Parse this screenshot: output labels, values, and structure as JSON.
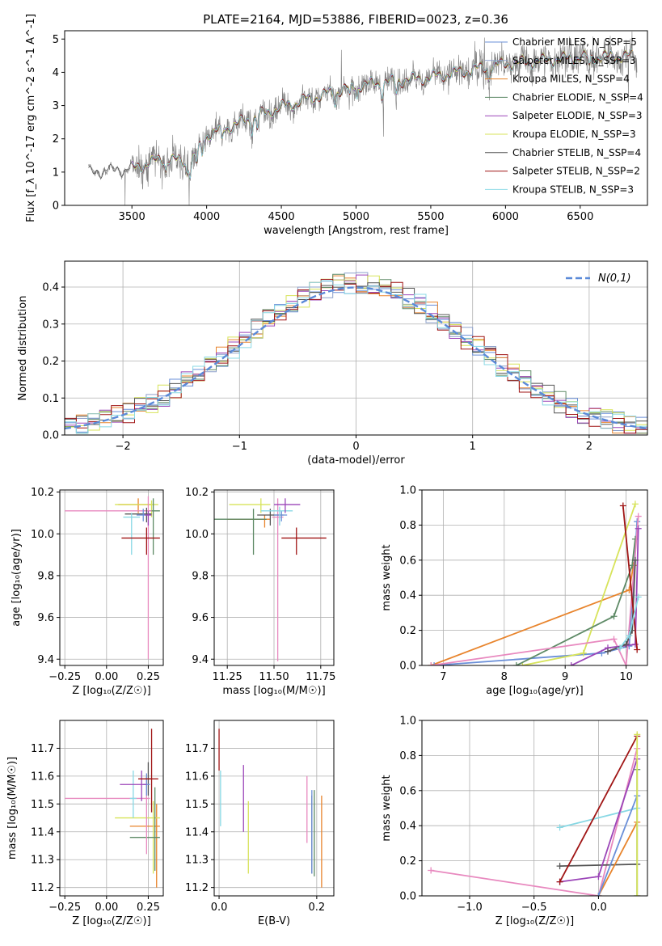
{
  "figure": {
    "title": "PLATE=2164, MJD=53886, FIBERID=0023, z=0.36"
  },
  "chart_data": [
    {
      "id": "spectrum",
      "type": "line",
      "xlabel": "wavelength [Angstrom, rest frame]",
      "ylabel": "Flux [f_λ 10^-17 erg cm^-2 s^-1 A^-1]",
      "xlim": [
        3050,
        6950
      ],
      "ylim": [
        0,
        5.25
      ],
      "xticks": [
        3500,
        4000,
        4500,
        5000,
        5500,
        6000,
        6500
      ],
      "yticks": [
        0,
        1,
        2,
        3,
        4,
        5
      ],
      "grid": false,
      "legend_position": "top-right",
      "observed_spectrum": {
        "color": "#808080",
        "x_range": [
          3210,
          6880
        ],
        "trend_x": [
          3210,
          3500,
          3700,
          3900,
          4000,
          4500,
          5000,
          5500,
          6000,
          6500,
          6880
        ],
        "trend_y": [
          1.0,
          1.1,
          1.4,
          1.3,
          2.1,
          2.95,
          3.6,
          3.85,
          4.25,
          4.45,
          4.5
        ]
      },
      "series": [
        {
          "name": "Chabrier MILES, N_SSP=5",
          "color": "#6a8fd8"
        },
        {
          "name": "Salpeter MILES, N_SSP=3",
          "color": "#8da0cb"
        },
        {
          "name": "Kroupa MILES, N_SSP=4",
          "color": "#e8842c"
        },
        {
          "name": "Chabrier ELODIE, N_SSP=4",
          "color": "#5e8a66"
        },
        {
          "name": "Salpeter ELODIE, N_SSP=3",
          "color": "#9b45b8"
        },
        {
          "name": "Kroupa ELODIE, N_SSP=3",
          "color": "#d7e35a"
        },
        {
          "name": "Chabrier STELIB, N_SSP=4",
          "color": "#555555"
        },
        {
          "name": "Salpeter STELIB, N_SSP=2",
          "color": "#a01515"
        },
        {
          "name": "Kroupa STELIB, N_SSP=3",
          "color": "#88d8e4"
        }
      ]
    },
    {
      "id": "residuals",
      "type": "histogram",
      "xlabel": "(data-model)/error",
      "ylabel": "Normed distribution",
      "xlim": [
        -2.5,
        2.5
      ],
      "ylim": [
        0,
        0.47
      ],
      "xticks": [
        -2,
        -1,
        0,
        1,
        2
      ],
      "yticks": [
        0.0,
        0.1,
        0.2,
        0.3,
        0.4
      ],
      "grid": true,
      "legend_position": "top-right",
      "normal_curve": {
        "name": "N(0,1)",
        "color": "#5b8ad8",
        "style": "dashed"
      },
      "bin_width": 0.1,
      "bins": [
        -2.5,
        2.5
      ]
    },
    {
      "id": "age_vs_Z",
      "type": "errorbar",
      "xlabel": "Z [log10(Z/Z_sun)]",
      "ylabel": "age [log10(age/yr)]",
      "xlim": [
        -0.28,
        0.34
      ],
      "ylim": [
        9.37,
        10.21
      ],
      "xticks": [
        -0.25,
        0.0,
        0.25
      ],
      "yticks": [
        9.4,
        9.6,
        9.8,
        10.0,
        10.2
      ],
      "grid": true,
      "points": [
        {
          "x": 0.19,
          "xerr": [
            0.12,
            0.08
          ],
          "y": 10.14,
          "yerr": [
            0.04,
            0.03
          ],
          "color": "#e8842c"
        },
        {
          "x": 0.27,
          "xerr": [
            0.22,
            0.04
          ],
          "y": 10.14,
          "yerr": [
            0.06,
            0.02
          ],
          "color": "#d7e35a"
        },
        {
          "x": 0.28,
          "xerr": [
            0.06,
            0.04
          ],
          "y": 10.11,
          "yerr": [
            0.21,
            0.06
          ],
          "color": "#5e8a66"
        },
        {
          "x": 0.25,
          "xerr": [
            0.5,
            0.02
          ],
          "y": 10.11,
          "yerr": [
            0.71,
            0.07
          ],
          "color": "#e889bf"
        },
        {
          "x": 0.24,
          "xerr": [
            0.13,
            0.03
          ],
          "y": 10.095,
          "yerr": [
            0.04,
            0.03
          ],
          "color": "#555555"
        },
        {
          "x": 0.22,
          "xerr": [
            0.04,
            0.03
          ],
          "y": 10.09,
          "yerr": [
            0.03,
            0.03
          ],
          "color": "#6a8fd8"
        },
        {
          "x": 0.15,
          "xerr": [
            0.05,
            0.05
          ],
          "y": 10.08,
          "yerr": [
            0.18,
            0.02
          ],
          "color": "#88d8e4"
        },
        {
          "x": 0.25,
          "xerr": [
            0.02,
            0.02
          ],
          "y": 10.09,
          "yerr": [
            0.05,
            0.02
          ],
          "color": "#9b45b8"
        },
        {
          "x": 0.24,
          "xerr": [
            0.15,
            0.08
          ],
          "y": 9.98,
          "yerr": [
            0.08,
            0.05
          ],
          "color": "#a01515"
        }
      ]
    },
    {
      "id": "age_vs_mass",
      "type": "errorbar",
      "xlabel": "mass [log10(M/M_sun)]",
      "ylabel": "",
      "xlim": [
        11.18,
        11.82
      ],
      "ylim": [
        9.37,
        10.21
      ],
      "xticks": [
        11.25,
        11.5,
        11.75
      ],
      "yticks": [
        9.4,
        9.6,
        9.8,
        10.0,
        10.2
      ],
      "grid": true,
      "points": [
        {
          "x": 11.45,
          "xerr": [
            0.2,
            0.03
          ],
          "y": 10.07,
          "yerr": [
            0.04,
            0.02
          ],
          "color": "#e8842c"
        },
        {
          "x": 11.43,
          "xerr": [
            0.17,
            0.05
          ],
          "y": 10.14,
          "yerr": [
            0.04,
            0.03
          ],
          "color": "#d7e35a"
        },
        {
          "x": 11.39,
          "xerr": [
            0.22,
            0.07
          ],
          "y": 10.07,
          "yerr": [
            0.17,
            0.05
          ],
          "color": "#5e8a66"
        },
        {
          "x": 11.52,
          "xerr": [
            0.03,
            0.03
          ],
          "y": 10.08,
          "yerr": [
            0.69,
            0.09
          ],
          "color": "#e889bf"
        },
        {
          "x": 11.48,
          "xerr": [
            0.07,
            0.07
          ],
          "y": 10.09,
          "yerr": [
            0.05,
            0.03
          ],
          "color": "#555555"
        },
        {
          "x": 11.54,
          "xerr": [
            0.04,
            0.03
          ],
          "y": 10.09,
          "yerr": [
            0.03,
            0.02
          ],
          "color": "#6a8fd8"
        },
        {
          "x": 11.53,
          "xerr": [
            0.1,
            0.07
          ],
          "y": 10.11,
          "yerr": [
            0.07,
            0.02
          ],
          "color": "#88d8e4"
        },
        {
          "x": 11.56,
          "xerr": [
            0.06,
            0.08
          ],
          "y": 10.14,
          "yerr": [
            0.04,
            0.03
          ],
          "color": "#9b45b8"
        },
        {
          "x": 11.62,
          "xerr": [
            0.08,
            0.16
          ],
          "y": 9.98,
          "yerr": [
            0.08,
            0.05
          ],
          "color": "#a01515"
        }
      ]
    },
    {
      "id": "massweight_vs_age",
      "type": "line",
      "xlabel": "age [log10(age/yr)]",
      "ylabel": "mass weight",
      "xlim": [
        6.65,
        10.35
      ],
      "ylim": [
        0,
        1.0
      ],
      "xticks": [
        7,
        8,
        9,
        10
      ],
      "yticks": [
        0.0,
        0.2,
        0.4,
        0.6,
        0.8,
        1.0
      ],
      "grid": true,
      "series": [
        {
          "color": "#e8842c",
          "x": [
            6.8,
            10.05,
            10.12
          ],
          "y": [
            0.0,
            0.43,
            0.57
          ]
        },
        {
          "color": "#6a8fd8",
          "x": [
            6.85,
            9.6,
            10.05,
            10.18
          ],
          "y": [
            0.0,
            0.07,
            0.11,
            0.82
          ]
        },
        {
          "color": "#d7e35a",
          "x": [
            8.3,
            9.3,
            10.15
          ],
          "y": [
            0.0,
            0.07,
            0.92
          ]
        },
        {
          "color": "#5e8a66",
          "x": [
            8.2,
            9.8,
            10.1,
            10.15
          ],
          "y": [
            0.0,
            0.28,
            0.57,
            0.72
          ]
        },
        {
          "color": "#e889bf",
          "x": [
            6.8,
            9.8,
            10.0,
            10.2
          ],
          "y": [
            0.0,
            0.15,
            0.0,
            0.85
          ]
        },
        {
          "color": "#9b45b8",
          "x": [
            9.1,
            9.7,
            10.15,
            10.2
          ],
          "y": [
            0.0,
            0.1,
            0.12,
            0.78
          ]
        },
        {
          "color": "#555555",
          "x": [
            9.7,
            10.0,
            10.1,
            10.15
          ],
          "y": [
            0.08,
            0.12,
            0.2,
            0.6
          ]
        },
        {
          "color": "#a01515",
          "x": [
            9.95,
            10.18
          ],
          "y": [
            0.91,
            0.09
          ]
        },
        {
          "color": "#88d8e4",
          "x": [
            9.9,
            10.05,
            10.2
          ],
          "y": [
            0.1,
            0.17,
            0.39
          ]
        }
      ]
    },
    {
      "id": "mass_vs_Z",
      "type": "errorbar",
      "xlabel": "Z [log10(Z/Z_sun)]",
      "ylabel": "mass [log10(M/M_sun)]",
      "xlim": [
        -0.28,
        0.34
      ],
      "ylim": [
        11.17,
        11.8
      ],
      "xticks": [
        -0.25,
        0.0,
        0.25
      ],
      "yticks": [
        11.2,
        11.3,
        11.4,
        11.5,
        11.6,
        11.7
      ],
      "grid": true,
      "points": [
        {
          "x": 0.3,
          "xerr": [
            0.16,
            0.02
          ],
          "y": 11.42,
          "yerr": [
            0.22,
            0.08
          ],
          "color": "#e8842c"
        },
        {
          "x": 0.28,
          "xerr": [
            0.23,
            0.04
          ],
          "y": 11.45,
          "yerr": [
            0.2,
            0.06
          ],
          "color": "#d7e35a"
        },
        {
          "x": 0.29,
          "xerr": [
            0.15,
            0.03
          ],
          "y": 11.38,
          "yerr": [
            0.12,
            0.18
          ],
          "color": "#5e8a66"
        },
        {
          "x": 0.24,
          "xerr": [
            0.49,
            0.02
          ],
          "y": 11.52,
          "yerr": [
            0.2,
            0.08
          ],
          "color": "#e889bf"
        },
        {
          "x": 0.25,
          "xerr": [
            0.02,
            0.02
          ],
          "y": 11.59,
          "yerr": [
            0.06,
            0.06
          ],
          "color": "#555555"
        },
        {
          "x": 0.24,
          "xerr": [
            0.02,
            0.02
          ],
          "y": 11.57,
          "yerr": [
            0.04,
            0.04
          ],
          "color": "#6a8fd8"
        },
        {
          "x": 0.16,
          "xerr": [
            0.02,
            0.02
          ],
          "y": 11.52,
          "yerr": [
            0.07,
            0.1
          ],
          "color": "#88d8e4"
        },
        {
          "x": 0.21,
          "xerr": [
            0.13,
            0.03
          ],
          "y": 11.57,
          "yerr": [
            0.06,
            0.05
          ],
          "color": "#9b45b8"
        },
        {
          "x": 0.27,
          "xerr": [
            0.08,
            0.04
          ],
          "y": 11.59,
          "yerr": [
            0.12,
            0.18
          ],
          "color": "#a01515"
        }
      ]
    },
    {
      "id": "mass_vs_EBV",
      "type": "errorbar",
      "xlabel": "E(B-V)",
      "ylabel": "",
      "xlim": [
        -0.01,
        0.235
      ],
      "ylim": [
        11.17,
        11.8
      ],
      "xticks": [
        0.0,
        0.2
      ],
      "yticks": [
        11.2,
        11.3,
        11.4,
        11.5,
        11.6,
        11.7
      ],
      "grid": true,
      "points": [
        {
          "x": 0.21,
          "y": 11.36,
          "yerr": [
            0.16,
            0.17
          ],
          "color": "#e8842c"
        },
        {
          "x": 0.06,
          "y": 11.38,
          "yerr": [
            0.13,
            0.13
          ],
          "color": "#d7e35a"
        },
        {
          "x": 0.195,
          "y": 11.39,
          "yerr": [
            0.15,
            0.16
          ],
          "color": "#5e8a66"
        },
        {
          "x": 0.18,
          "y": 11.47,
          "yerr": [
            0.11,
            0.13
          ],
          "color": "#e889bf"
        },
        {
          "x": 0.19,
          "y": 11.38,
          "yerr": [
            0.13,
            0.15
          ],
          "color": "#555555"
        },
        {
          "x": 0.19,
          "y": 11.4,
          "yerr": [
            0.15,
            0.15
          ],
          "color": "#6a8fd8"
        },
        {
          "x": 0.003,
          "y": 11.52,
          "yerr": [
            0.1,
            0.1
          ],
          "color": "#88d8e4"
        },
        {
          "x": 0.05,
          "y": 11.52,
          "yerr": [
            0.12,
            0.12
          ],
          "color": "#9b45b8"
        },
        {
          "x": 0.0,
          "y": 11.7,
          "yerr": [
            0.08,
            0.07
          ],
          "color": "#a01515"
        }
      ]
    },
    {
      "id": "massweight_vs_Z",
      "type": "line",
      "xlabel": "Z [log10(Z/Z_sun)]",
      "ylabel": "mass weight",
      "xlim": [
        -1.37,
        0.38
      ],
      "ylim": [
        0,
        1.0
      ],
      "xticks": [
        -1.0,
        -0.5,
        0.0
      ],
      "yticks": [
        0.0,
        0.2,
        0.4,
        0.6,
        0.8,
        1.0
      ],
      "grid": true,
      "series": [
        {
          "color": "#e889bf",
          "x": [
            -1.3,
            0.0,
            0.3
          ],
          "y": [
            0.145,
            0.0,
            0.84
          ]
        },
        {
          "color": "#555555",
          "x": [
            -0.3,
            0.3
          ],
          "y": [
            0.17,
            0.18
          ]
        },
        {
          "color": "#88d8e4",
          "x": [
            -0.3,
            0.3
          ],
          "y": [
            0.39,
            0.5
          ]
        },
        {
          "color": "#9b45b8",
          "x": [
            -0.3,
            0.0,
            0.3
          ],
          "y": [
            0.08,
            0.11,
            0.78
          ]
        },
        {
          "color": "#a01515",
          "x": [
            -0.3,
            0.3
          ],
          "y": [
            0.08,
            0.91
          ]
        },
        {
          "color": "#e8842c",
          "x": [
            0.0,
            0.3
          ],
          "y": [
            0.0,
            0.42
          ]
        },
        {
          "color": "#6a8fd8",
          "x": [
            0.0,
            0.3
          ],
          "y": [
            0.0,
            0.57
          ]
        },
        {
          "color": "#5e8a66",
          "x": [
            0.3,
            0.3
          ],
          "y": [
            0.0,
            0.72
          ]
        },
        {
          "color": "#d7e35a",
          "x": [
            0.3,
            0.3
          ],
          "y": [
            0.0,
            0.92
          ]
        }
      ]
    }
  ]
}
